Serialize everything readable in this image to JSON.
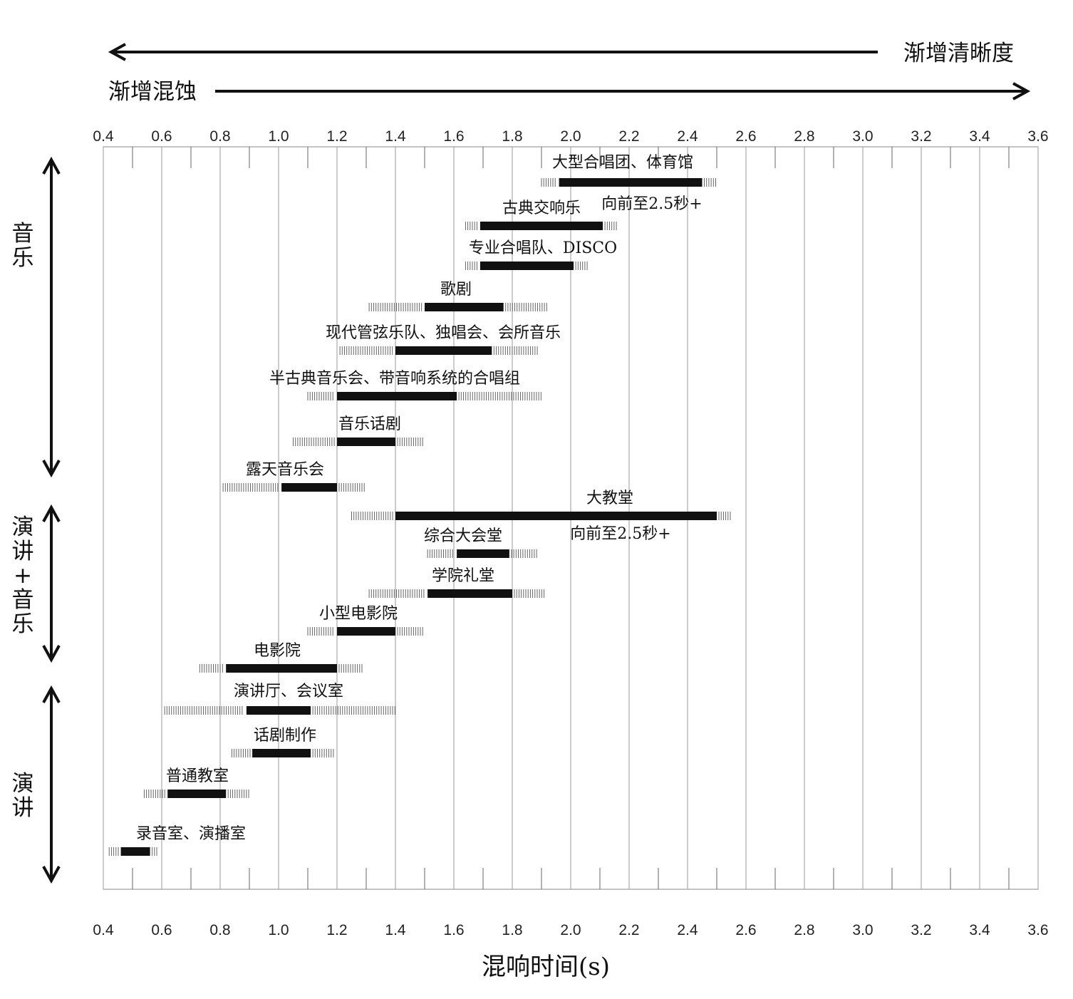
{
  "header": {
    "clarity_label": "渐增清晰度",
    "muddiness_label": "渐增混蚀"
  },
  "chart_data": {
    "type": "bar",
    "xlabel": "混响时间(s)",
    "ylabel": "",
    "xlim": [
      0.4,
      3.6
    ],
    "x_ticks": [
      "0.4",
      "0.6",
      "0.8",
      "1.0",
      "1.2",
      "1.4",
      "1.6",
      "1.8",
      "2.0",
      "2.2",
      "2.4",
      "2.6",
      "2.8",
      "3.0",
      "3.2",
      "3.4",
      "3.6"
    ],
    "grid": true,
    "groups": [
      {
        "name": "音乐",
        "vertical": [
          "音",
          "乐"
        ]
      },
      {
        "name": "演讲+音乐",
        "vertical": [
          "演",
          "讲",
          "+",
          "音",
          "乐"
        ]
      },
      {
        "name": "演讲",
        "vertical": [
          "演",
          "讲"
        ]
      }
    ],
    "series": [
      {
        "label": "大型合唱团、体育馆",
        "range": [
          1.96,
          2.45
        ],
        "ext": [
          1.9,
          2.5
        ],
        "note": "向前至2.5秒+"
      },
      {
        "label": "古典交响乐",
        "range": [
          1.69,
          2.11
        ],
        "ext": [
          1.64,
          2.16
        ]
      },
      {
        "label": "专业合唱队、DISCO",
        "range": [
          1.69,
          2.01
        ],
        "ext": [
          1.64,
          2.06
        ]
      },
      {
        "label": "歌剧",
        "range": [
          1.5,
          1.77
        ],
        "ext": [
          1.31,
          1.92
        ]
      },
      {
        "label": "现代管弦乐队、独唱会、会所音乐",
        "range": [
          1.4,
          1.73
        ],
        "ext": [
          1.21,
          1.89
        ]
      },
      {
        "label": "半古典音乐会、带音响系统的合唱组",
        "range": [
          1.2,
          1.61
        ],
        "ext": [
          1.1,
          1.9
        ]
      },
      {
        "label": "音乐话剧",
        "range": [
          1.2,
          1.4
        ],
        "ext": [
          1.05,
          1.5
        ]
      },
      {
        "label": "露天音乐会",
        "range": [
          1.01,
          1.2
        ],
        "ext": [
          0.81,
          1.3
        ]
      },
      {
        "label": "大教堂",
        "range": [
          1.4,
          2.5
        ],
        "ext": [
          1.25,
          2.55
        ],
        "note": "向前至2.5秒+"
      },
      {
        "label": "综合大会堂",
        "range": [
          1.61,
          1.79
        ],
        "ext": [
          1.51,
          1.89
        ]
      },
      {
        "label": "学院礼堂",
        "range": [
          1.51,
          1.8
        ],
        "ext": [
          1.31,
          1.91
        ]
      },
      {
        "label": "小型电影院",
        "range": [
          1.2,
          1.4
        ],
        "ext": [
          1.1,
          1.5
        ]
      },
      {
        "label": "电影院",
        "range": [
          0.82,
          1.2
        ],
        "ext": [
          0.73,
          1.29
        ]
      },
      {
        "label": "演讲厅、会议室",
        "range": [
          0.89,
          1.11
        ],
        "ext": [
          0.61,
          1.4
        ]
      },
      {
        "label": "话剧制作",
        "range": [
          0.91,
          1.11
        ],
        "ext": [
          0.84,
          1.19
        ]
      },
      {
        "label": "普通教室",
        "range": [
          0.62,
          0.82
        ],
        "ext": [
          0.54,
          0.9
        ]
      },
      {
        "label": "录音室、演播室",
        "range": [
          0.46,
          0.56
        ],
        "ext": [
          0.42,
          0.59
        ]
      }
    ]
  }
}
